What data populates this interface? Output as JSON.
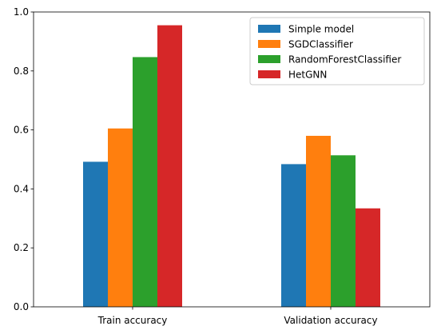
{
  "chart_data": {
    "type": "bar",
    "categories": [
      "Train accuracy",
      "Validation accuracy"
    ],
    "series": [
      {
        "name": "Simple model",
        "color": "#1f77b4",
        "values": [
          0.492,
          0.484
        ]
      },
      {
        "name": "SGDClassifier",
        "color": "#ff7f0e",
        "values": [
          0.605,
          0.58
        ]
      },
      {
        "name": "RandomForestClassifier",
        "color": "#2ca02c",
        "values": [
          0.847,
          0.514
        ]
      },
      {
        "name": "HetGNN",
        "color": "#d62728",
        "values": [
          0.955,
          0.334
        ]
      }
    ],
    "ylim": [
      0,
      1.0
    ],
    "yticks": [
      "0.0",
      "0.2",
      "0.4",
      "0.6",
      "0.8",
      "1.0"
    ],
    "title": "",
    "xlabel": "",
    "ylabel": "",
    "legend_position": "top-right",
    "grid": false
  }
}
